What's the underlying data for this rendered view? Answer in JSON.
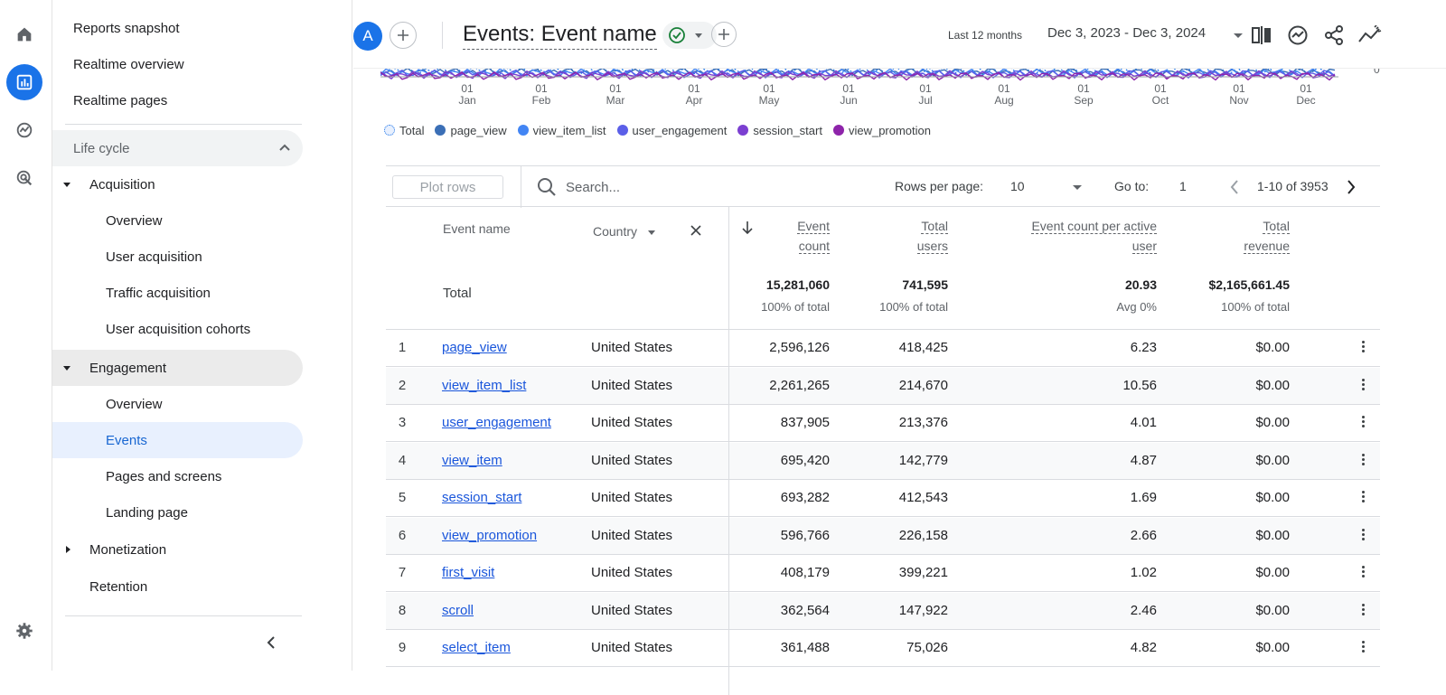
{
  "rail": {
    "items": [
      "home-icon",
      "reports-icon",
      "explore-icon",
      "advertising-icon",
      "settings-icon"
    ]
  },
  "sidebar": {
    "top_items": [
      "Reports snapshot",
      "Realtime overview",
      "Realtime pages"
    ],
    "section": "Life cycle",
    "acquisition": {
      "label": "Acquisition",
      "children": [
        "Overview",
        "User acquisition",
        "Traffic acquisition",
        "User acquisition cohorts"
      ]
    },
    "engagement": {
      "label": "Engagement",
      "children": [
        "Overview",
        "Events",
        "Pages and screens",
        "Landing page"
      ]
    },
    "monetization": "Monetization",
    "retention": "Retention",
    "selected": "Events"
  },
  "header": {
    "avatar_letter": "A",
    "title": "Events: Event name",
    "date_label": "Last 12 months",
    "date_range": "Dec 3, 2023 - Dec 3, 2024",
    "icons": [
      "compare-icon",
      "insights-icon",
      "share-icon",
      "trend-icon"
    ]
  },
  "chart": {
    "y_tick": "0",
    "months": [
      {
        "d": "01",
        "m": "Jan"
      },
      {
        "d": "01",
        "m": "Feb"
      },
      {
        "d": "01",
        "m": "Mar"
      },
      {
        "d": "01",
        "m": "Apr"
      },
      {
        "d": "01",
        "m": "May"
      },
      {
        "d": "01",
        "m": "Jun"
      },
      {
        "d": "01",
        "m": "Jul"
      },
      {
        "d": "01",
        "m": "Aug"
      },
      {
        "d": "01",
        "m": "Sep"
      },
      {
        "d": "01",
        "m": "Oct"
      },
      {
        "d": "01",
        "m": "Nov"
      },
      {
        "d": "01",
        "m": "Dec"
      }
    ],
    "legend": [
      {
        "label": "Total",
        "color": "#1a73e8"
      },
      {
        "label": "page_view",
        "color": "#3b6fb6"
      },
      {
        "label": "view_item_list",
        "color": "#4285f4"
      },
      {
        "label": "user_engagement",
        "color": "#5b5fe8"
      },
      {
        "label": "session_start",
        "color": "#7b3fd1"
      },
      {
        "label": "view_promotion",
        "color": "#8e24aa"
      }
    ]
  },
  "table": {
    "plot_rows": "Plot rows",
    "search_placeholder": "Search...",
    "rows_per_page_label": "Rows per page:",
    "rows_per_page": "10",
    "goto_label": "Go to:",
    "goto_value": "1",
    "page_range": "1-10 of 3953",
    "columns": {
      "event_name": "Event name",
      "country": "Country",
      "event_count_1": "Event",
      "event_count_2": "count",
      "total_users_1": "Total",
      "total_users_2": "users",
      "per_user_1": "Event count per active",
      "per_user_2": "user",
      "revenue_1": "Total",
      "revenue_2": "revenue"
    },
    "totals": {
      "label": "Total",
      "event_count": "15,281,060",
      "event_count_sub": "100% of total",
      "total_users": "741,595",
      "total_users_sub": "100% of total",
      "per_user": "20.93",
      "per_user_sub": "Avg 0%",
      "revenue": "$2,165,661.45",
      "revenue_sub": "100% of total"
    },
    "rows": [
      {
        "idx": "1",
        "event": "page_view",
        "country": "United States",
        "count": "2,596,126",
        "users": "418,425",
        "per_user": "6.23",
        "revenue": "$0.00"
      },
      {
        "idx": "2",
        "event": "view_item_list",
        "country": "United States",
        "count": "2,261,265",
        "users": "214,670",
        "per_user": "10.56",
        "revenue": "$0.00"
      },
      {
        "idx": "3",
        "event": "user_engagement",
        "country": "United States",
        "count": "837,905",
        "users": "213,376",
        "per_user": "4.01",
        "revenue": "$0.00"
      },
      {
        "idx": "4",
        "event": "view_item",
        "country": "United States",
        "count": "695,420",
        "users": "142,779",
        "per_user": "4.87",
        "revenue": "$0.00"
      },
      {
        "idx": "5",
        "event": "session_start",
        "country": "United States",
        "count": "693,282",
        "users": "412,543",
        "per_user": "1.69",
        "revenue": "$0.00"
      },
      {
        "idx": "6",
        "event": "view_promotion",
        "country": "United States",
        "count": "596,766",
        "users": "226,158",
        "per_user": "2.66",
        "revenue": "$0.00"
      },
      {
        "idx": "7",
        "event": "first_visit",
        "country": "United States",
        "count": "408,179",
        "users": "399,221",
        "per_user": "1.02",
        "revenue": "$0.00"
      },
      {
        "idx": "8",
        "event": "scroll",
        "country": "United States",
        "count": "362,564",
        "users": "147,922",
        "per_user": "2.46",
        "revenue": "$0.00"
      },
      {
        "idx": "9",
        "event": "select_item",
        "country": "United States",
        "count": "361,488",
        "users": "75,026",
        "per_user": "4.82",
        "revenue": "$0.00"
      }
    ]
  }
}
